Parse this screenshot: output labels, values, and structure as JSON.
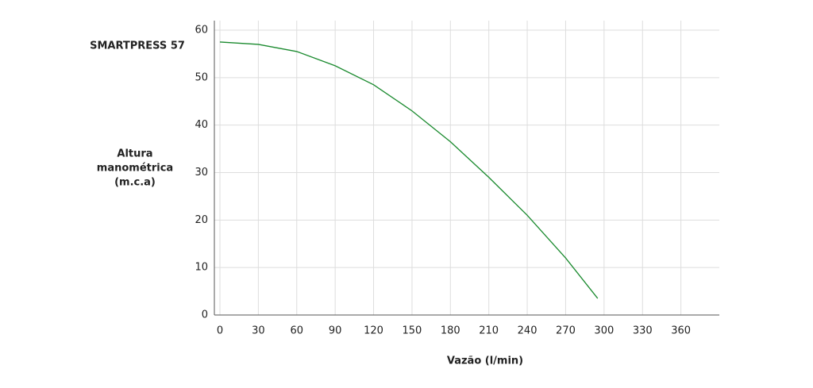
{
  "chart_data": {
    "type": "line",
    "title": "SMARTPRESS 57",
    "y_label": [
      "Altura",
      "manométrica",
      "(m.c.a)"
    ],
    "x_label": "Vazão (l/min)",
    "x": [
      0,
      30,
      60,
      90,
      120,
      150,
      180,
      210,
      240,
      270,
      295
    ],
    "series": [
      {
        "name": "SMARTPRESS 57",
        "color": "#1a8a2e",
        "values": [
          57.5,
          57,
          55.5,
          52.5,
          48.5,
          43,
          36.5,
          29,
          21,
          12,
          3.5
        ]
      }
    ],
    "xlim": [
      0,
      390
    ],
    "ylim": [
      0,
      60
    ],
    "xticks": [
      0,
      30,
      60,
      90,
      120,
      150,
      180,
      210,
      240,
      270,
      300,
      330,
      360
    ],
    "yticks": [
      0,
      10,
      20,
      30,
      40,
      50,
      60
    ],
    "grid": true
  }
}
